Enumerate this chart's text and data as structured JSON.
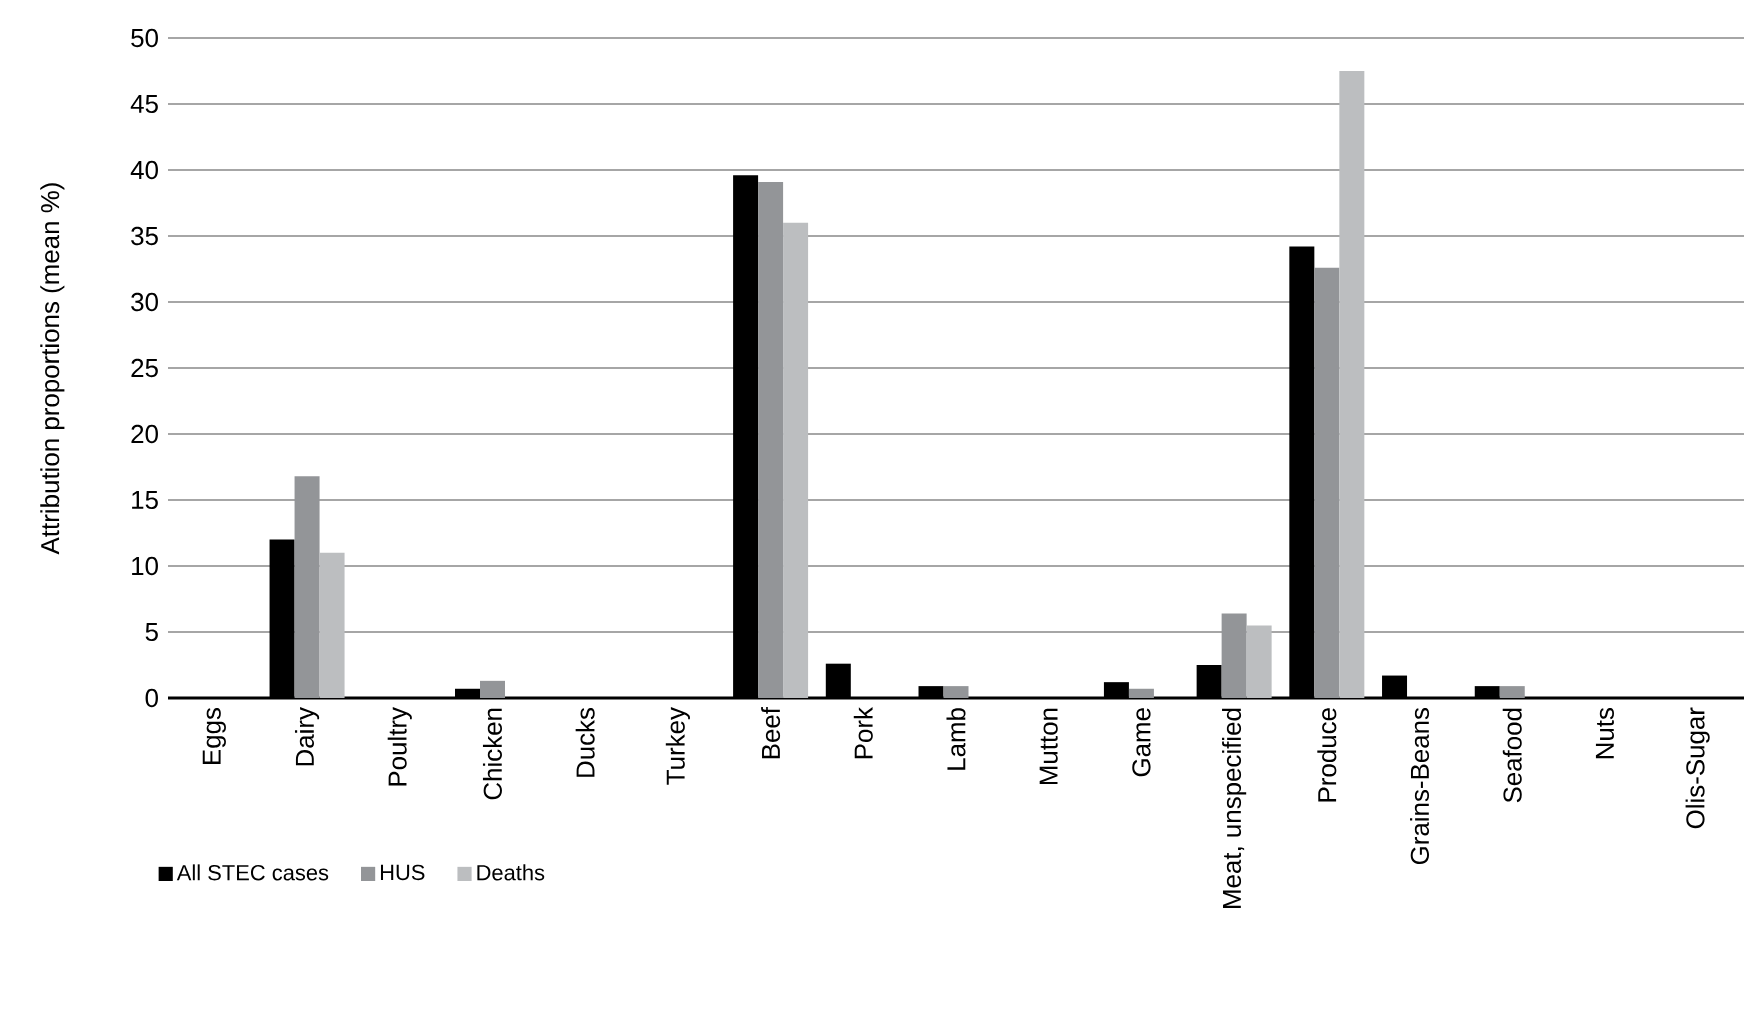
{
  "chart_data": {
    "type": "bar",
    "ylabel": "Attribution proportions (mean %)",
    "categories": [
      "Eggs",
      "Dairy",
      "Poultry",
      "Chicken",
      "Ducks",
      "Turkey",
      "Beef",
      "Pork",
      "Lamb",
      "Mutton",
      "Game",
      "Meat, unspecified",
      "Produce",
      "Grains-Beans",
      "Seafood",
      "Nuts",
      "Olis-Sugar"
    ],
    "series": [
      {
        "name": "All STEC cases",
        "color": "#000000",
        "values": [
          0,
          12.0,
          0,
          0.7,
          0,
          0,
          39.6,
          2.6,
          0.9,
          0,
          1.2,
          2.5,
          34.2,
          1.7,
          0.9,
          0,
          0
        ]
      },
      {
        "name": "HUS",
        "color": "#939598",
        "values": [
          0,
          16.8,
          0,
          1.3,
          0,
          0,
          39.1,
          0,
          0.9,
          0,
          0.7,
          6.4,
          32.6,
          0,
          0.9,
          0,
          0
        ]
      },
      {
        "name": "Deaths",
        "color": "#bcbec0",
        "values": [
          0,
          11.0,
          0,
          0,
          0,
          0,
          36.0,
          0,
          0,
          0,
          0,
          5.5,
          47.5,
          0,
          0,
          0,
          0
        ]
      }
    ],
    "ylim": [
      0,
      50
    ],
    "yticks": [
      0,
      5,
      10,
      15,
      20,
      25,
      30,
      35,
      40,
      45,
      50
    ],
    "grid": "y",
    "legend": "bottom left"
  }
}
